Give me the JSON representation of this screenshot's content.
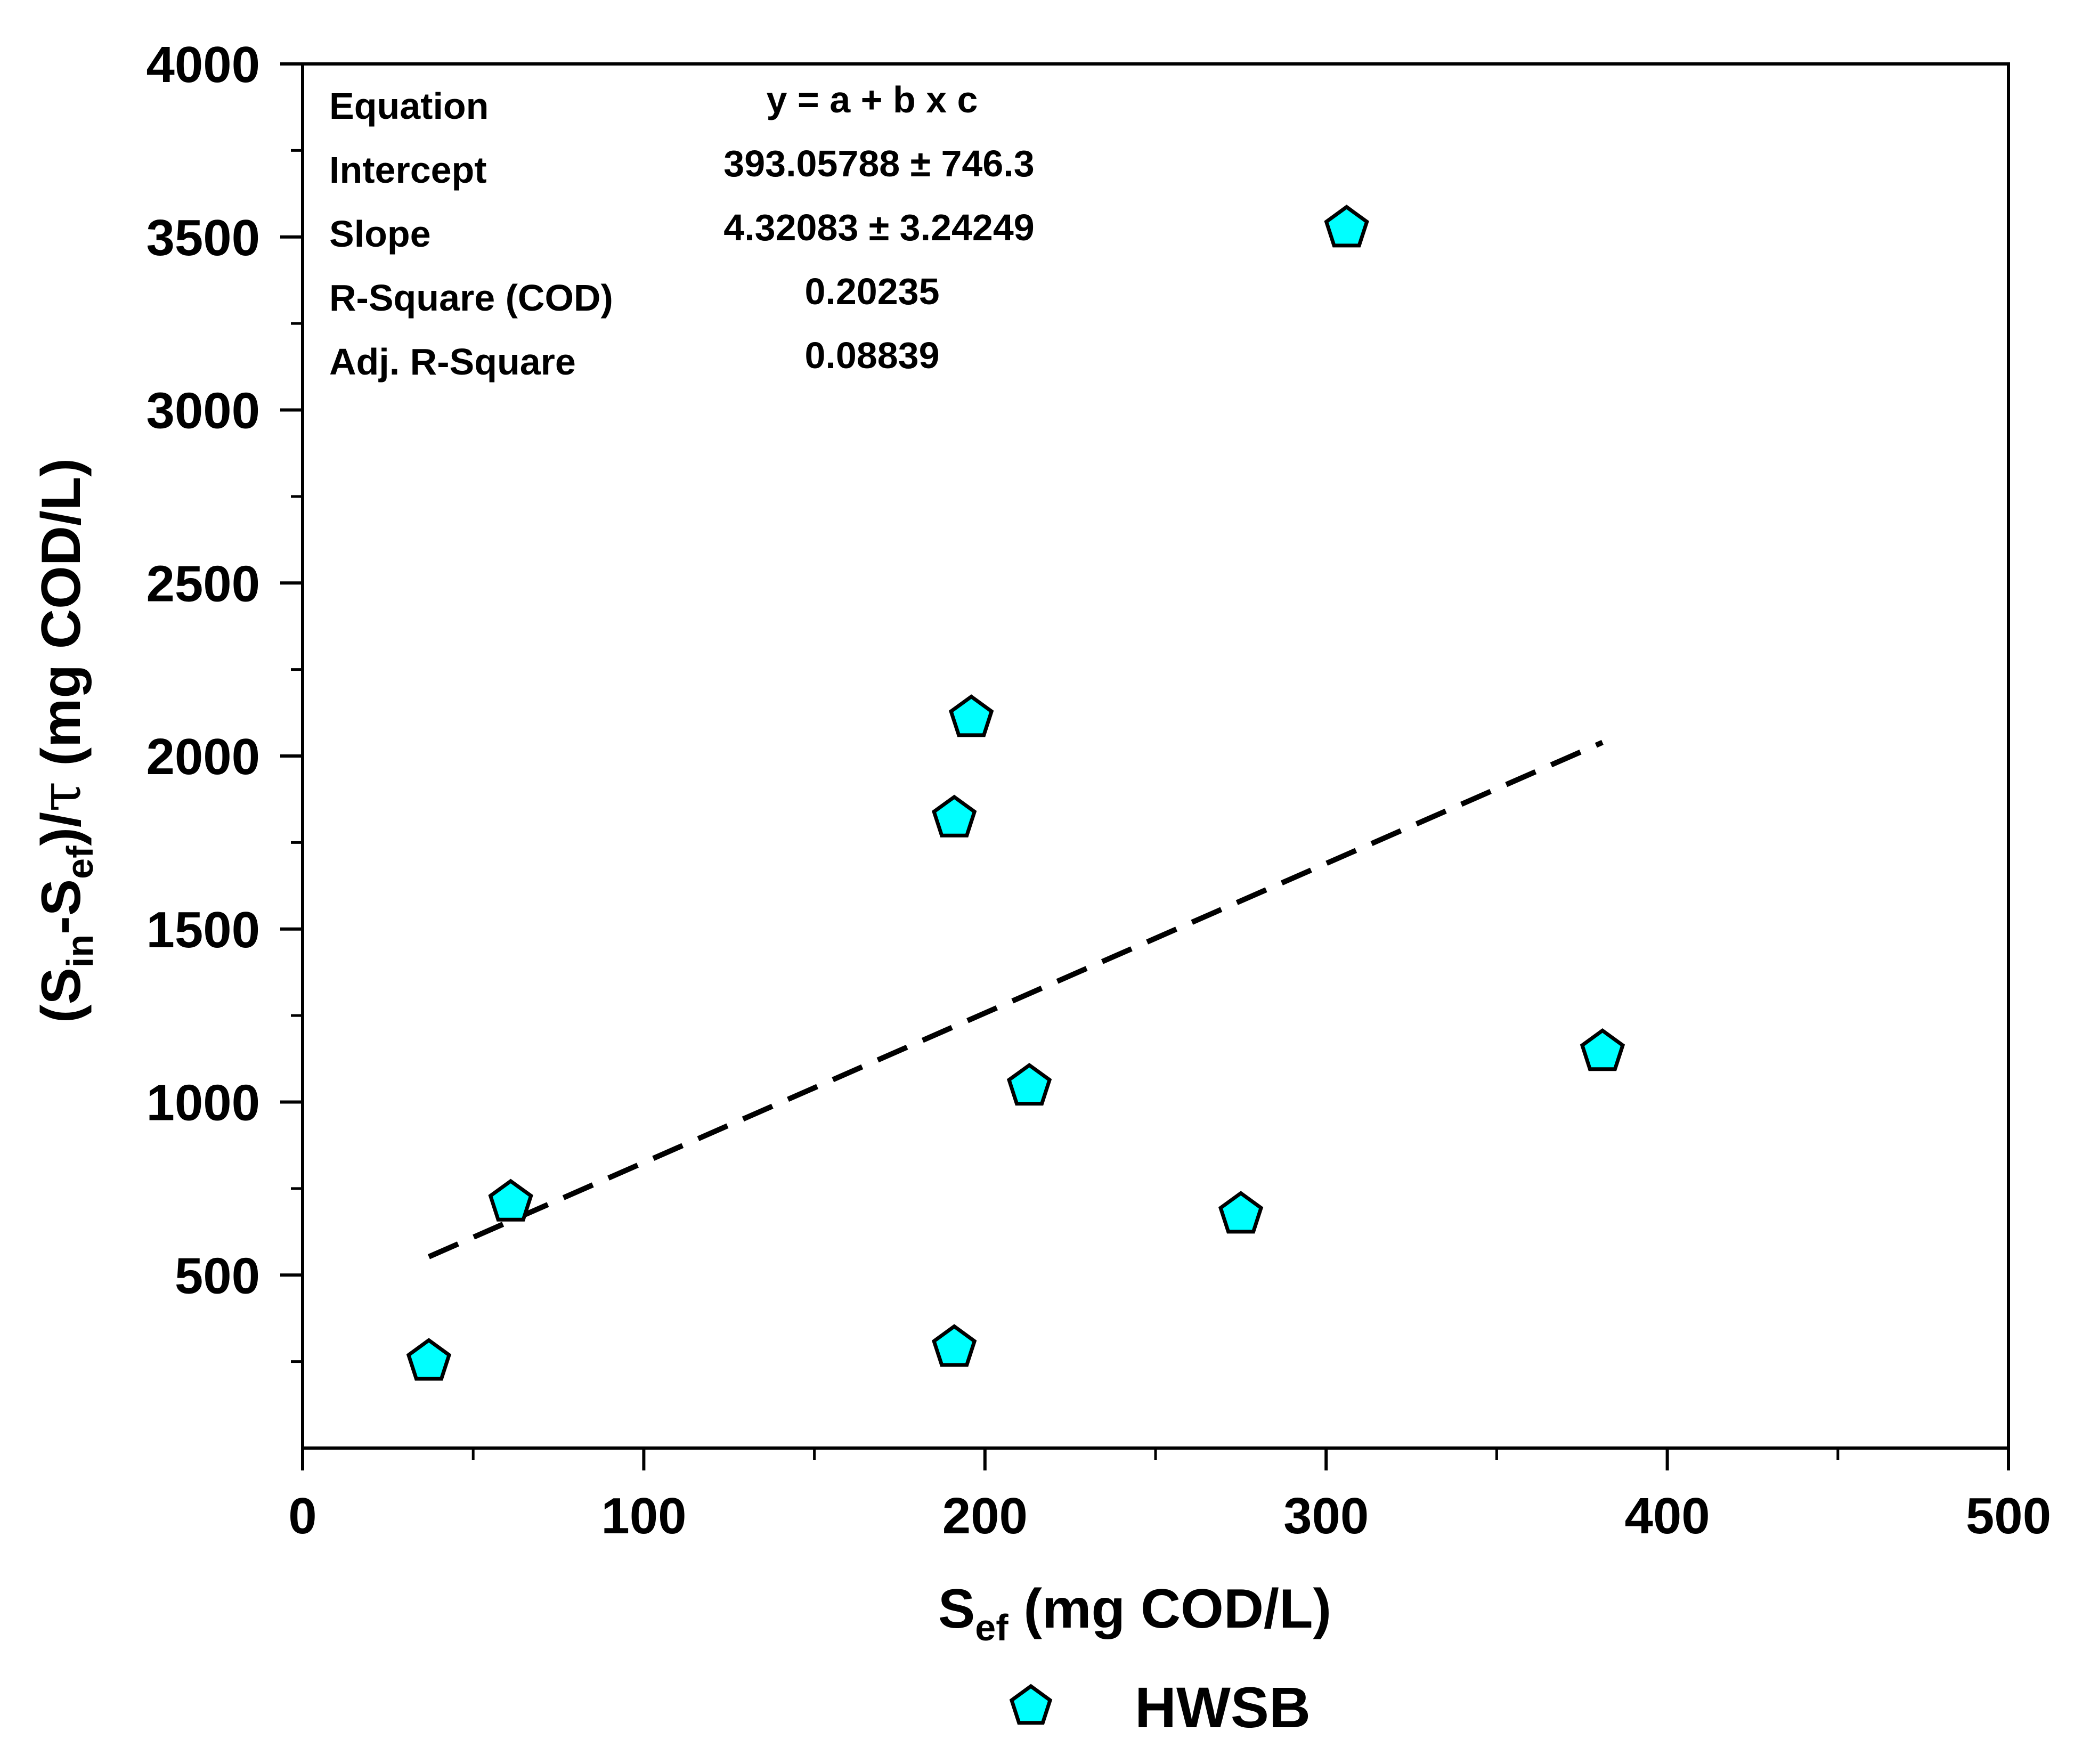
{
  "chart_data": {
    "type": "scatter",
    "title": "",
    "xlabel": {
      "main": "S",
      "sub": "ef",
      "unit": " (mg COD/L)"
    },
    "ylabel": {
      "open": "(S",
      "sub1": "in",
      "mid": "-S",
      "sub2": "ef",
      "close": ")/",
      "tau": "τ",
      "unit": " (mg COD/L)"
    },
    "xlim": [
      0,
      500
    ],
    "ylim": [
      0,
      4000
    ],
    "xticks": [
      0,
      100,
      200,
      300,
      400,
      500
    ],
    "xtick_labels": [
      "0",
      "100",
      "200",
      "300",
      "400",
      "500"
    ],
    "xminor": [
      50,
      150,
      250,
      350,
      450
    ],
    "yticks": [
      500,
      1000,
      1500,
      2000,
      2500,
      3000,
      3500,
      4000
    ],
    "ytick_labels": [
      "500",
      "1000",
      "1500",
      "2000",
      "2500",
      "3000",
      "3500",
      "4000"
    ],
    "yminor": [
      250,
      750,
      1250,
      1750,
      2250,
      2750,
      3250,
      3750
    ],
    "grid": false,
    "legend_position": "bottom",
    "series": [
      {
        "name": "HWSB",
        "marker": "pentagon",
        "color": "#00ffff",
        "points": [
          {
            "x": 37,
            "y": 250
          },
          {
            "x": 61,
            "y": 710
          },
          {
            "x": 191,
            "y": 290
          },
          {
            "x": 191,
            "y": 1820
          },
          {
            "x": 196,
            "y": 2110
          },
          {
            "x": 213,
            "y": 1045
          },
          {
            "x": 275,
            "y": 675
          },
          {
            "x": 306,
            "y": 3525
          },
          {
            "x": 381,
            "y": 1145
          }
        ]
      }
    ],
    "fit_line": {
      "style": "dashed",
      "color": "#000000",
      "intercept": 393.05788,
      "slope": 4.32083,
      "x_range": [
        37,
        381
      ]
    },
    "stats_table": {
      "rows": [
        {
          "label": "Equation",
          "value": "y = a + b x c"
        },
        {
          "label": "Intercept",
          "value": "393.05788 ± 746.3"
        },
        {
          "label": "Slope",
          "value": "4.32083 ± 3.24249"
        },
        {
          "label": "R-Square (COD)",
          "value": "0.20235"
        },
        {
          "label": "Adj. R-Square",
          "value": "0.08839"
        }
      ]
    },
    "legend": [
      {
        "label": "HWSB",
        "marker": "pentagon",
        "color": "#00ffff"
      }
    ]
  }
}
